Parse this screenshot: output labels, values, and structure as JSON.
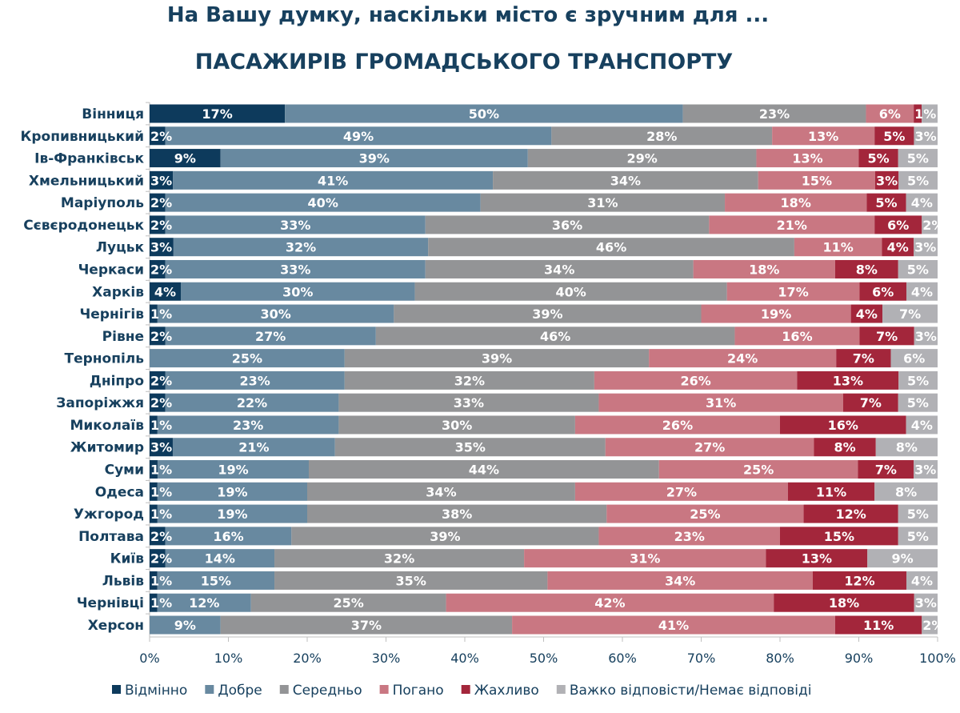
{
  "chart_data": {
    "type": "bar",
    "orientation": "horizontal",
    "stacked": true,
    "title": "На Вашу думку, наскільки місто є зручним для ...",
    "subtitle": "ПАСАЖИРІВ ГРОМАДСЬКОГО ТРАНСПОРТУ",
    "xlim": [
      0,
      100
    ],
    "x_ticks": [
      "0%",
      "10%",
      "20%",
      "30%",
      "40%",
      "50%",
      "60%",
      "70%",
      "80%",
      "90%",
      "100%"
    ],
    "legend_position": "bottom",
    "grid": false,
    "categories": [
      "Вінниця",
      "Кропивницький",
      "Ів-Франківськ",
      "Хмельницький",
      "Маріуполь",
      "Сєвєродонецьк",
      "Луцьк",
      "Черкаси",
      "Харків",
      "Чернігів",
      "Рівне",
      "Тернопіль",
      "Дніпро",
      "Запоріжжя",
      "Миколаїв",
      "Житомир",
      "Суми",
      "Одеса",
      "Ужгород",
      "Полтава",
      "Київ",
      "Львів",
      "Чернівці",
      "Херсон"
    ],
    "series": [
      {
        "name": "Відмінно",
        "color": "#0d3a5c",
        "values": [
          17,
          2,
          9,
          3,
          2,
          2,
          3,
          2,
          4,
          1,
          2,
          0,
          2,
          2,
          1,
          3,
          1,
          1,
          1,
          2,
          2,
          1,
          1,
          0
        ]
      },
      {
        "name": "Добре",
        "color": "#6889a0",
        "values": [
          50,
          49,
          39,
          41,
          40,
          33,
          32,
          33,
          30,
          30,
          27,
          25,
          23,
          22,
          23,
          21,
          19,
          19,
          19,
          16,
          14,
          15,
          12,
          9
        ]
      },
      {
        "name": "Середньо",
        "color": "#939496",
        "values": [
          23,
          28,
          29,
          34,
          31,
          36,
          46,
          34,
          40,
          39,
          46,
          39,
          32,
          33,
          30,
          35,
          44,
          34,
          38,
          39,
          32,
          35,
          25,
          37
        ]
      },
      {
        "name": "Погано",
        "color": "#c97782",
        "values": [
          6,
          13,
          13,
          15,
          18,
          21,
          11,
          18,
          17,
          19,
          16,
          24,
          26,
          31,
          26,
          27,
          25,
          27,
          25,
          23,
          31,
          34,
          42,
          41
        ]
      },
      {
        "name": "Жахливо",
        "color": "#a3263b",
        "values": [
          1,
          5,
          5,
          3,
          5,
          6,
          4,
          8,
          6,
          4,
          7,
          7,
          13,
          7,
          16,
          8,
          7,
          11,
          12,
          15,
          13,
          12,
          18,
          11
        ]
      },
      {
        "name": "Важко відповісти/Немає відповіді",
        "color": "#b1b1b5",
        "values": [
          2,
          3,
          5,
          5,
          4,
          2,
          3,
          5,
          4,
          7,
          3,
          6,
          5,
          5,
          4,
          8,
          3,
          8,
          5,
          5,
          9,
          4,
          3,
          2
        ]
      }
    ]
  }
}
